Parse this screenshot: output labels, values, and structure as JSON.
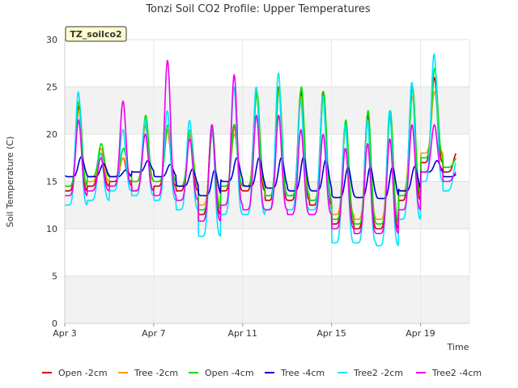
{
  "chart_data": {
    "type": "line",
    "title": "Tonzi Soil CO2 Profile: Upper Temperatures",
    "site_label": "TZ_soilco2",
    "xlabel": "Time",
    "ylabel": "Soil Temperature (C)",
    "x_ticks": [
      "Apr 3",
      "Apr 7",
      "Apr 11",
      "Apr 15",
      "Apr 19"
    ],
    "x_tick_days": [
      3,
      7,
      11,
      15,
      19
    ],
    "xlim": [
      3,
      21.2
    ],
    "ylim": [
      0,
      30
    ],
    "y_ticks": [
      0,
      5,
      10,
      15,
      20,
      25,
      30
    ],
    "grid": true,
    "legend_position": "bottom",
    "series": [
      {
        "name": "Open -2cm",
        "color": "#cc0000",
        "daily_max": [
          23.0,
          18.0,
          17.5,
          21.0,
          20.5,
          20.0,
          21.0,
          21.0,
          24.5,
          25.0,
          24.5,
          24.5,
          21.0,
          22.0,
          22.0,
          25.0,
          26.0,
          18.0
        ],
        "daily_min": [
          14.0,
          14.5,
          15.0,
          14.0,
          14.5,
          14.0,
          11.5,
          14.0,
          14.0,
          13.0,
          13.0,
          12.5,
          10.5,
          10.0,
          10.0,
          13.0,
          17.0,
          16.0
        ]
      },
      {
        "name": "Tree -2cm",
        "color": "#ff9900",
        "daily_max": [
          22.5,
          18.5,
          17.5,
          21.0,
          20.5,
          20.0,
          20.0,
          20.0,
          24.0,
          24.5,
          24.0,
          24.0,
          20.5,
          21.5,
          22.0,
          24.0,
          24.5,
          17.5
        ],
        "daily_min": [
          14.5,
          15.0,
          15.5,
          15.0,
          15.0,
          14.5,
          12.5,
          14.5,
          14.5,
          13.5,
          13.5,
          13.0,
          11.5,
          11.0,
          11.0,
          14.0,
          18.0,
          16.5
        ]
      },
      {
        "name": "Open -4cm",
        "color": "#00dd00",
        "daily_max": [
          23.5,
          19.0,
          18.5,
          22.0,
          21.0,
          20.5,
          20.5,
          21.0,
          24.5,
          25.0,
          25.0,
          24.5,
          21.5,
          22.5,
          22.5,
          25.0,
          27.0,
          17.5
        ],
        "daily_min": [
          14.5,
          15.5,
          15.5,
          15.0,
          15.0,
          14.5,
          12.0,
          14.5,
          14.5,
          13.5,
          13.5,
          13.0,
          11.0,
          10.5,
          10.5,
          13.5,
          17.5,
          16.5
        ]
      },
      {
        "name": "Tree -4cm",
        "color": "#0000cc",
        "daily_max": [
          17.6,
          16.9,
          16.2,
          17.2,
          16.8,
          16.3,
          16.2,
          17.5,
          17.5,
          17.5,
          17.6,
          17.3,
          16.5,
          16.5,
          16.5,
          16.6,
          17.2,
          16.0
        ],
        "daily_min": [
          15.5,
          15.5,
          15.5,
          16.0,
          15.5,
          14.5,
          13.5,
          15.0,
          14.5,
          14.3,
          14.0,
          14.0,
          13.3,
          13.3,
          13.2,
          14.0,
          16.0,
          15.5
        ]
      },
      {
        "name": "Tree2 -2cm",
        "color": "#00e5ff",
        "daily_max": [
          24.5,
          18.0,
          20.5,
          21.5,
          22.5,
          21.5,
          21.0,
          25.0,
          25.0,
          26.5,
          23.5,
          24.0,
          21.0,
          21.5,
          22.5,
          25.5,
          28.5,
          17.0
        ],
        "daily_min": [
          12.5,
          13.0,
          14.0,
          13.5,
          13.0,
          12.0,
          9.2,
          11.5,
          11.5,
          12.0,
          12.0,
          12.0,
          8.5,
          8.5,
          8.2,
          11.0,
          15.0,
          14.0
        ]
      },
      {
        "name": "Tree2 -4cm",
        "color": "#ee00ee",
        "daily_max": [
          21.5,
          17.5,
          23.5,
          20.0,
          27.8,
          19.5,
          21.0,
          26.3,
          22.0,
          22.0,
          20.5,
          20.0,
          18.5,
          19.0,
          19.5,
          21.0,
          21.0,
          16.0
        ],
        "daily_min": [
          13.5,
          14.0,
          14.5,
          14.0,
          13.5,
          13.0,
          10.8,
          12.5,
          12.0,
          12.0,
          11.5,
          11.5,
          10.0,
          9.5,
          9.5,
          12.0,
          16.0,
          15.0
        ]
      }
    ]
  }
}
